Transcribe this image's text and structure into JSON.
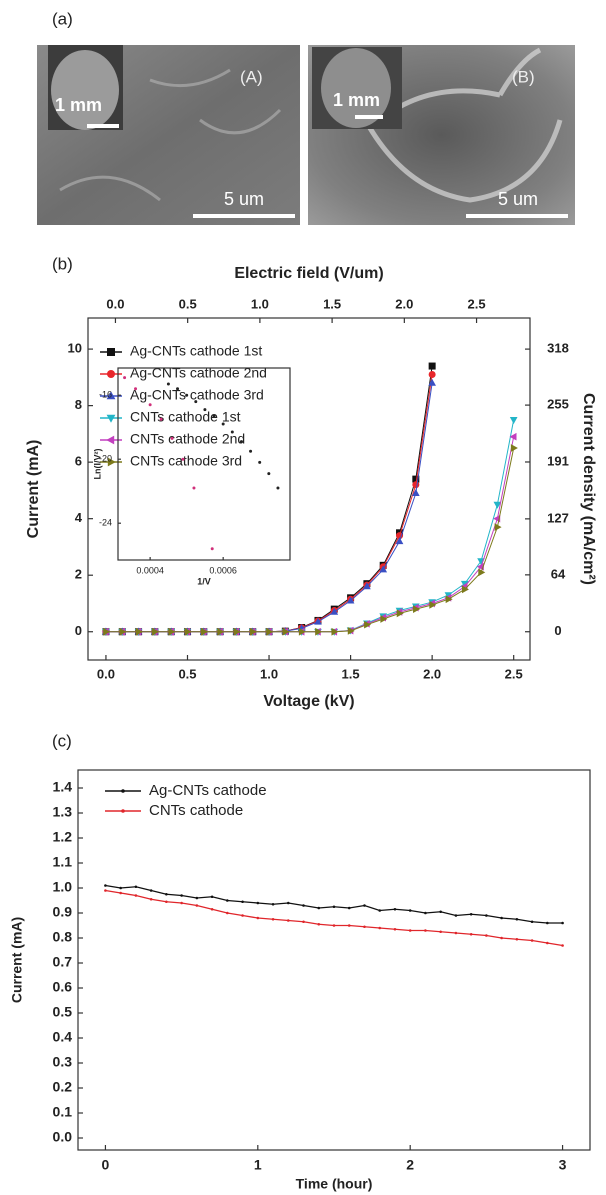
{
  "figure_a": {
    "panel": "(a)",
    "images": [
      {
        "label": "(A)",
        "inset_scale": "1 mm",
        "scale": "5 um"
      },
      {
        "label": "(B)",
        "inset_scale": "1 mm",
        "scale": "5 um"
      }
    ]
  },
  "chart_data": [
    {
      "type": "line",
      "panel": "(b)",
      "xlabel": "Voltage (kV)",
      "ylabel": "Current (mA)",
      "x2label": "Electric field (V/um)",
      "y2label": "Current density (mA/cm²)",
      "xlim": [
        -0.11,
        2.6
      ],
      "ylim": [
        -1,
        11.1
      ],
      "xticks": [
        {
          "value": 0,
          "label": "0.0"
        },
        0.5,
        {
          "value": 1,
          "label": "1.0"
        },
        1.5,
        {
          "value": 2,
          "label": "2.0"
        },
        2.5
      ],
      "yticks": [
        0,
        2,
        4,
        6,
        8,
        10
      ],
      "x2lim": [
        -0.19,
        2.87
      ],
      "x2ticks": [
        {
          "value": 0,
          "label": "0.0"
        },
        0.5,
        {
          "value": 1,
          "label": "1.0"
        },
        1.5,
        {
          "value": 2,
          "label": "2.0"
        },
        2.5
      ],
      "y2lim": [
        -31.8,
        353
      ],
      "y2ticks": [
        0,
        64,
        127,
        191,
        255,
        318
      ],
      "legend": "upper left",
      "series": [
        {
          "name": "Ag-CNTs cathode 1st",
          "color": "#111111",
          "marker": "square",
          "x": [
            0,
            0.1,
            0.2,
            0.3,
            0.4,
            0.5,
            0.6,
            0.7,
            0.8,
            0.9,
            1.0,
            1.1,
            1.2,
            1.3,
            1.4,
            1.5,
            1.6,
            1.7,
            1.8,
            1.9,
            2.0
          ],
          "values": [
            0,
            0,
            0,
            0,
            0,
            0,
            0,
            0,
            0,
            0,
            0,
            0.02,
            0.15,
            0.4,
            0.8,
            1.2,
            1.7,
            2.35,
            3.5,
            5.4,
            9.4
          ]
        },
        {
          "name": "Ag-CNTs cathode 2nd",
          "color": "#e8262b",
          "marker": "circle",
          "x": [
            0,
            0.1,
            0.2,
            0.3,
            0.4,
            0.5,
            0.6,
            0.7,
            0.8,
            0.9,
            1.0,
            1.1,
            1.2,
            1.3,
            1.4,
            1.5,
            1.6,
            1.7,
            1.8,
            1.9,
            2.0
          ],
          "values": [
            0,
            0,
            0,
            0,
            0,
            0,
            0,
            0,
            0,
            0,
            0,
            0.02,
            0.14,
            0.38,
            0.75,
            1.15,
            1.65,
            2.3,
            3.4,
            5.2,
            9.1
          ]
        },
        {
          "name": "Ag-CNTs cathode 3rd",
          "color": "#3a4fc4",
          "marker": "triangle-up",
          "x": [
            0,
            0.1,
            0.2,
            0.3,
            0.4,
            0.5,
            0.6,
            0.7,
            0.8,
            0.9,
            1.0,
            1.1,
            1.2,
            1.3,
            1.4,
            1.5,
            1.6,
            1.7,
            1.8,
            1.9,
            2.0
          ],
          "values": [
            0,
            0,
            0,
            0,
            0,
            0,
            0,
            0,
            0,
            0,
            0,
            0.02,
            0.12,
            0.35,
            0.7,
            1.1,
            1.6,
            2.2,
            3.2,
            4.9,
            8.8
          ]
        },
        {
          "name": "CNTs cathode 1st",
          "color": "#22b5c8",
          "marker": "triangle-down",
          "x": [
            0,
            0.1,
            0.2,
            0.3,
            0.4,
            0.5,
            0.6,
            0.7,
            0.8,
            0.9,
            1.0,
            1.1,
            1.2,
            1.3,
            1.4,
            1.5,
            1.6,
            1.7,
            1.8,
            1.9,
            2.0,
            2.1,
            2.2,
            2.3,
            2.4,
            2.5
          ],
          "values": [
            0,
            0,
            0,
            0,
            0,
            0,
            0,
            0,
            0,
            0,
            0,
            0,
            0,
            0,
            0,
            0.05,
            0.3,
            0.55,
            0.75,
            0.9,
            1.05,
            1.3,
            1.7,
            2.5,
            4.5,
            7.5
          ]
        },
        {
          "name": "CNTs cathode 2nd",
          "color": "#c23fbf",
          "marker": "triangle-left",
          "x": [
            0,
            0.1,
            0.2,
            0.3,
            0.4,
            0.5,
            0.6,
            0.7,
            0.8,
            0.9,
            1.0,
            1.1,
            1.2,
            1.3,
            1.4,
            1.5,
            1.6,
            1.7,
            1.8,
            1.9,
            2.0,
            2.1,
            2.2,
            2.3,
            2.4,
            2.5
          ],
          "values": [
            0,
            0,
            0,
            0,
            0,
            0,
            0,
            0,
            0,
            0,
            0,
            0,
            0,
            0,
            0,
            0.04,
            0.28,
            0.5,
            0.7,
            0.85,
            1.0,
            1.2,
            1.6,
            2.3,
            4.0,
            6.9
          ]
        },
        {
          "name": "CNTs cathode 3rd",
          "color": "#7d7a1c",
          "marker": "triangle-right",
          "x": [
            0,
            0.1,
            0.2,
            0.3,
            0.4,
            0.5,
            0.6,
            0.7,
            0.8,
            0.9,
            1.0,
            1.1,
            1.2,
            1.3,
            1.4,
            1.5,
            1.6,
            1.7,
            1.8,
            1.9,
            2.0,
            2.1,
            2.2,
            2.3,
            2.4,
            2.5
          ],
          "values": [
            0,
            0,
            0,
            0,
            0,
            0,
            0,
            0,
            0,
            0,
            0,
            0,
            0,
            0,
            0,
            0.03,
            0.25,
            0.45,
            0.65,
            0.8,
            0.95,
            1.15,
            1.5,
            2.1,
            3.7,
            6.5
          ]
        }
      ]
    },
    {
      "type": "scatter",
      "inset": true,
      "xlabel": "1/V",
      "ylabel": "Ln(I/V²)",
      "xlim": [
        0.000312,
        0.000783
      ],
      "ylim": [
        -26.3,
        -14.3
      ],
      "xticks": [
        0.0004,
        0.0006
      ],
      "yticks": [
        -16,
        -20,
        -24
      ],
      "series": [
        {
          "color": "#222222",
          "x": [
            0.00045,
            0.000475,
            0.0005,
            0.000525,
            0.00055,
            0.000575,
            0.0006,
            0.000625,
            0.00065,
            0.000675,
            0.0007,
            0.000725,
            0.00075
          ],
          "values": [
            -15.3,
            -15.6,
            -16.0,
            -16.4,
            -16.9,
            -17.3,
            -17.8,
            -18.3,
            -18.9,
            -19.5,
            -20.2,
            -20.9,
            -21.8
          ]
        },
        {
          "color": "#d0307a",
          "x": [
            0.00033,
            0.00036,
            0.0004,
            0.00043,
            0.00046,
            0.00049,
            0.00052,
            0.00057
          ],
          "values": [
            -14.9,
            -15.6,
            -16.6,
            -17.5,
            -18.7,
            -20.0,
            -21.8,
            -25.6
          ]
        }
      ]
    },
    {
      "type": "line",
      "panel": "(c)",
      "xlabel": "Time (hour)",
      "ylabel": "Current (mA)",
      "xlim": [
        -0.18,
        3.18
      ],
      "ylim": [
        -0.048,
        1.472
      ],
      "xticks": [
        0,
        1,
        2,
        3
      ],
      "yticks": [
        {
          "value": 0,
          "label": "0.0"
        },
        0.1,
        0.2,
        0.3,
        0.4,
        0.5,
        0.6,
        0.7,
        0.8,
        0.9,
        {
          "value": 1,
          "label": "1.0"
        },
        1.1,
        1.2,
        1.3,
        1.4
      ],
      "legend": "upper left",
      "series": [
        {
          "name": "Ag-CNTs cathode",
          "color": "#111111",
          "marker": "dot",
          "x": [
            0,
            0.1,
            0.2,
            0.3,
            0.4,
            0.5,
            0.6,
            0.7,
            0.8,
            0.9,
            1.0,
            1.1,
            1.2,
            1.3,
            1.4,
            1.5,
            1.6,
            1.7,
            1.8,
            1.9,
            2.0,
            2.1,
            2.2,
            2.3,
            2.4,
            2.5,
            2.6,
            2.7,
            2.8,
            2.9,
            3.0
          ],
          "values": [
            1.01,
            1.0,
            1.005,
            0.99,
            0.975,
            0.97,
            0.96,
            0.965,
            0.95,
            0.945,
            0.94,
            0.935,
            0.94,
            0.93,
            0.92,
            0.925,
            0.92,
            0.93,
            0.91,
            0.915,
            0.91,
            0.9,
            0.905,
            0.89,
            0.895,
            0.89,
            0.88,
            0.875,
            0.865,
            0.86,
            0.86
          ]
        },
        {
          "name": "CNTs cathode",
          "color": "#e0262b",
          "marker": "dot",
          "x": [
            0,
            0.1,
            0.2,
            0.3,
            0.4,
            0.5,
            0.6,
            0.7,
            0.8,
            0.9,
            1.0,
            1.1,
            1.2,
            1.3,
            1.4,
            1.5,
            1.6,
            1.7,
            1.8,
            1.9,
            2.0,
            2.1,
            2.2,
            2.3,
            2.4,
            2.5,
            2.6,
            2.7,
            2.8,
            2.9,
            3.0
          ],
          "values": [
            0.99,
            0.98,
            0.97,
            0.955,
            0.945,
            0.94,
            0.93,
            0.915,
            0.9,
            0.89,
            0.88,
            0.875,
            0.87,
            0.865,
            0.855,
            0.85,
            0.85,
            0.845,
            0.84,
            0.835,
            0.83,
            0.83,
            0.825,
            0.82,
            0.815,
            0.81,
            0.8,
            0.795,
            0.79,
            0.78,
            0.77
          ]
        }
      ]
    }
  ]
}
